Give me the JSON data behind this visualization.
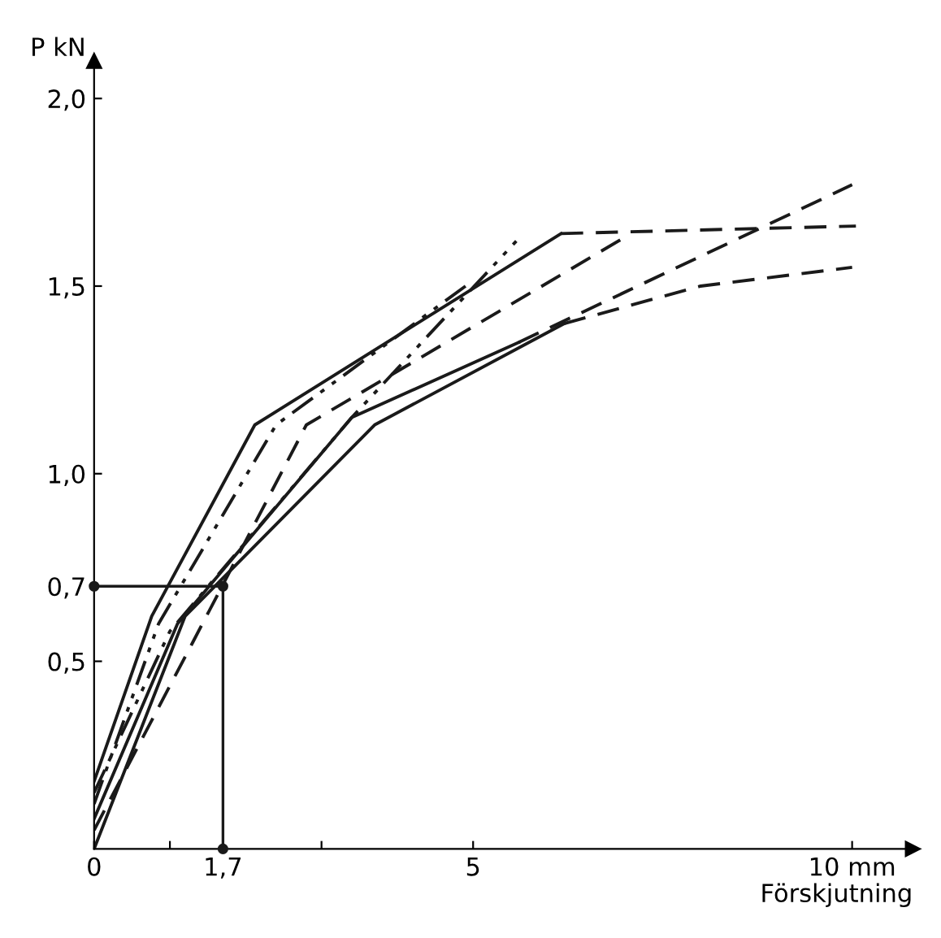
{
  "chart_data": {
    "type": "line",
    "ylabel": "P kN",
    "xlabel": "Förskjutning",
    "xlim": [
      0,
      10.8
    ],
    "ylim": [
      0,
      2.1
    ],
    "xticks": [
      {
        "value": 0,
        "label": "0"
      },
      {
        "value": 1,
        "label": null
      },
      {
        "value": 1.7,
        "label": "1,7"
      },
      {
        "value": 3,
        "label": null
      },
      {
        "value": 5,
        "label": "5"
      },
      {
        "value": 10,
        "label": "10 mm"
      }
    ],
    "yticks": [
      {
        "value": 0.5,
        "label": "0,5"
      },
      {
        "value": 0.7,
        "label": "0,7"
      },
      {
        "value": 1.0,
        "label": "1,0"
      },
      {
        "value": 1.5,
        "label": "1,5"
      },
      {
        "value": 2.0,
        "label": "2,0"
      }
    ],
    "grid": false,
    "legend": false,
    "series": [
      {
        "color": "#1a1a1a",
        "line_style": "solid",
        "x": [
          0,
          0.76,
          2.12,
          6.16
        ],
        "values": [
          0.18,
          0.62,
          1.13,
          1.64
        ]
      },
      {
        "color": "#1a1a1a",
        "line_style": "dashed",
        "x": [
          6.16,
          10.05
        ],
        "values": [
          1.64,
          1.66
        ]
      },
      {
        "color": "#1a1a1a",
        "line_style": "dashdot",
        "x": [
          0,
          0.85,
          2.4,
          4.9
        ],
        "values": [
          0.12,
          0.6,
          1.13,
          1.5
        ]
      },
      {
        "color": "#1a1a1a",
        "line_style": "dashdot",
        "x": [
          0,
          1.0,
          3.4,
          5.57
        ],
        "values": [
          0.15,
          0.58,
          1.15,
          1.62
        ]
      },
      {
        "color": "#1a1a1a",
        "line_style": "dashed",
        "x": [
          0,
          1.3,
          2.8,
          7.0
        ],
        "values": [
          0.05,
          0.55,
          1.13,
          1.63
        ]
      },
      {
        "color": "#1a1a1a",
        "line_style": "solid",
        "x": [
          0,
          1.1,
          3.4,
          5.6
        ],
        "values": [
          0.08,
          0.6,
          1.15,
          1.35
        ]
      },
      {
        "color": "#1a1a1a",
        "line_style": "dashed",
        "x": [
          5.6,
          10.0
        ],
        "values": [
          1.35,
          1.77
        ]
      },
      {
        "color": "#1a1a1a",
        "line_style": "solid",
        "x": [
          0,
          1.2,
          3.7,
          6.2
        ],
        "values": [
          0,
          0.62,
          1.13,
          1.4
        ]
      },
      {
        "color": "#1a1a1a",
        "line_style": "dashed",
        "x": [
          6.2,
          8.0,
          10.0
        ],
        "values": [
          1.4,
          1.5,
          1.55
        ]
      },
      {
        "type": "scatter",
        "color": "#1a1a1a",
        "marker": "circle",
        "x": [
          0,
          1.7,
          1.7
        ],
        "values": [
          0.7,
          0.7,
          0
        ]
      }
    ],
    "ref_lines": [
      {
        "axis": "x",
        "value": 1.7,
        "color": "#1a1a1a",
        "line_style": "solid"
      },
      {
        "axis": "y",
        "value": 0.7,
        "color": "#1a1a1a",
        "line_style": "solid"
      }
    ]
  }
}
